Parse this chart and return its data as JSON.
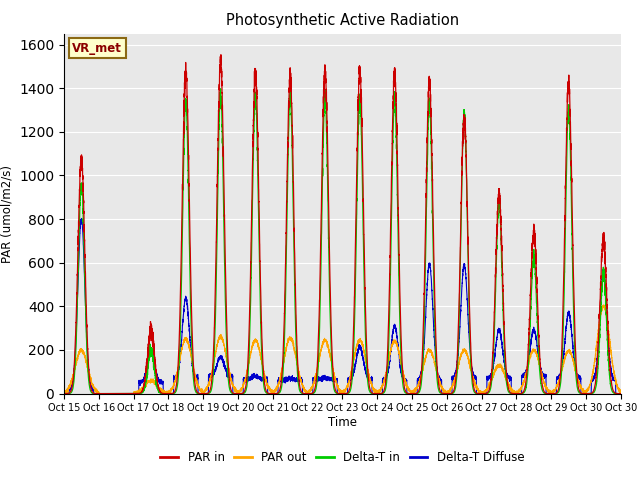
{
  "title": "Photosynthetic Active Radiation",
  "ylabel": "PAR (umol/m2/s)",
  "xlabel": "Time",
  "annotation": "VR_met",
  "ylim": [
    0,
    1650
  ],
  "background_color": "#e8e8e8",
  "fig_background": "#ffffff",
  "series_colors": {
    "par_in": "#cc0000",
    "par_out": "#ffa500",
    "delta_t_in": "#00cc00",
    "delta_t_diffuse": "#0000cc"
  },
  "legend": [
    "PAR in",
    "PAR out",
    "Delta-T in",
    "Delta-T Diffuse"
  ],
  "xtick_labels": [
    "Oct 15",
    "Oct 16",
    "Oct 17",
    "Oct 18",
    "Oct 19",
    "Oct 20",
    "Oct 21",
    "Oct 22",
    "Oct 23",
    "Oct 24",
    "Oct 25",
    "Oct 26",
    "Oct 27",
    "Oct 28",
    "Oct 29",
    "Oct 30"
  ],
  "day_peaks_par_in": [
    1070,
    0,
    290,
    1480,
    1520,
    1470,
    1460,
    1480,
    1480,
    1470,
    1430,
    1260,
    910,
    740,
    1420,
    700
  ],
  "day_peaks_par_out": [
    200,
    0,
    60,
    250,
    260,
    245,
    255,
    245,
    245,
    240,
    200,
    200,
    130,
    200,
    195,
    400
  ],
  "day_peaks_delta_t_in": [
    960,
    0,
    200,
    1340,
    1370,
    1360,
    1360,
    1360,
    1355,
    1350,
    1330,
    1280,
    880,
    620,
    1300,
    550
  ],
  "day_peaks_delta_t_diffuse": [
    800,
    0,
    200,
    440,
    170,
    80,
    70,
    70,
    215,
    310,
    595,
    590,
    295,
    295,
    370,
    560
  ],
  "day_base_blue": [
    20,
    0,
    50,
    70,
    80,
    65,
    60,
    65,
    65,
    60,
    60,
    70,
    70,
    80,
    70,
    60
  ]
}
